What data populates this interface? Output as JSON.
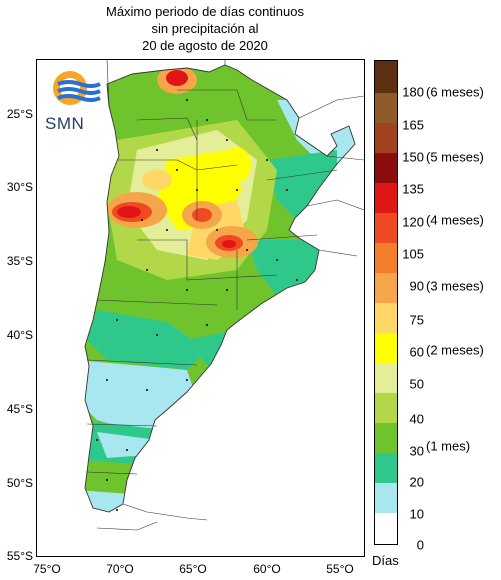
{
  "title": {
    "line1": "Máximo periodo de días continuos",
    "line2": "sin precipitación al",
    "line3": "20 de agosto de 2020"
  },
  "logo": {
    "text": "SMN",
    "icon": "smn-sun-waves-logo"
  },
  "axes": {
    "y_labels": [
      "25°S",
      "30°S",
      "35°S",
      "40°S",
      "45°S",
      "50°S",
      "55°S"
    ],
    "x_labels": [
      "75°O",
      "70°O",
      "65°O",
      "60°O",
      "55°O"
    ]
  },
  "legend": {
    "unit": "Días",
    "levels": [
      {
        "value": "0",
        "color": "#ffffff"
      },
      {
        "value": "10",
        "color": "#a8e6f0"
      },
      {
        "value": "20",
        "color": "#2ec98a"
      },
      {
        "value": "30",
        "color": "#6fc42e"
      },
      {
        "value": "40",
        "color": "#b2d84a"
      },
      {
        "value": "50",
        "color": "#e4ee98"
      },
      {
        "value": "60",
        "color": "#ffff00"
      },
      {
        "value": "75",
        "color": "#fed766"
      },
      {
        "value": "90",
        "color": "#f5a64a"
      },
      {
        "value": "105",
        "color": "#f27d2a"
      },
      {
        "value": "120",
        "color": "#f04a22"
      },
      {
        "value": "135",
        "color": "#e01616"
      },
      {
        "value": "150",
        "color": "#8c0d0d"
      },
      {
        "value": "165",
        "color": "#a0421e"
      },
      {
        "value": "180",
        "color": "#8d5a2b"
      },
      {
        "value": "",
        "color": "#5c3010"
      }
    ],
    "periods": [
      "(6 meses)",
      "(5 meses)",
      "(4 meses)",
      "(3 meses)",
      "(2 meses)",
      "(1 mes)"
    ]
  },
  "map_colors": {
    "ocean": "#ffffff",
    "border": "#333333"
  }
}
